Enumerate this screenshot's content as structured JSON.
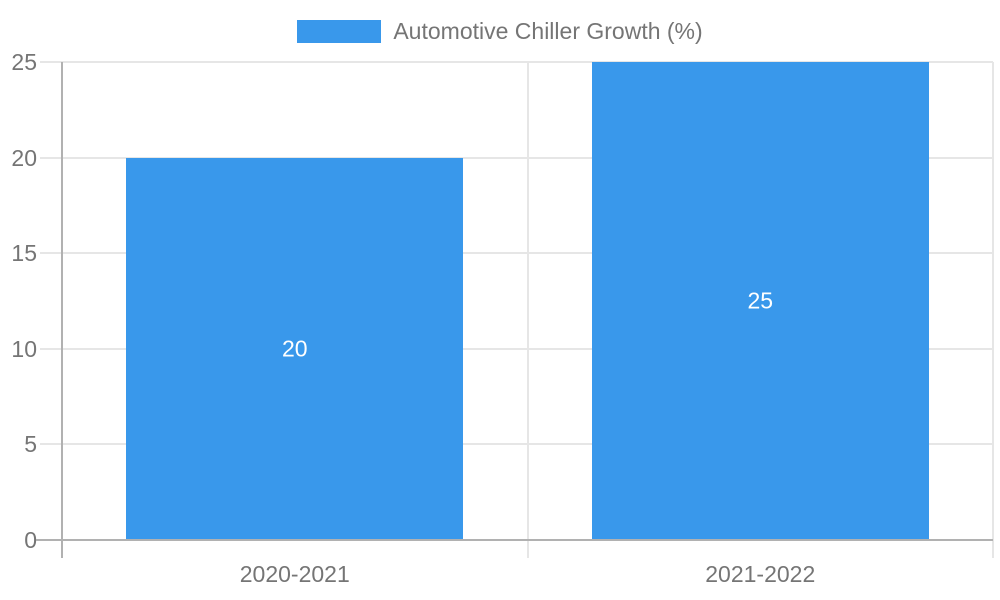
{
  "chart_data": {
    "type": "bar",
    "title": "",
    "legend": "Automotive Chiller Growth (%)",
    "legend_position": "top-center",
    "categories": [
      "2020-2021",
      "2021-2022"
    ],
    "series": [
      {
        "name": "Automotive Chiller Growth (%)",
        "values": [
          20,
          25
        ]
      }
    ],
    "value_labels": [
      "20",
      "25"
    ],
    "xlabel": "",
    "ylabel": "",
    "ylim": [
      0,
      25
    ],
    "yticks": [
      0,
      5,
      10,
      15,
      20,
      25
    ],
    "grid": "horizontal gridlines plus column divider lines, ticks overhang axes"
  },
  "colors": {
    "bar": "#3998EB",
    "grid": "#e6e6e6",
    "axis": "#b1b1b1",
    "text": "#757575",
    "bar_label": "#ffffff",
    "background": "#ffffff"
  }
}
